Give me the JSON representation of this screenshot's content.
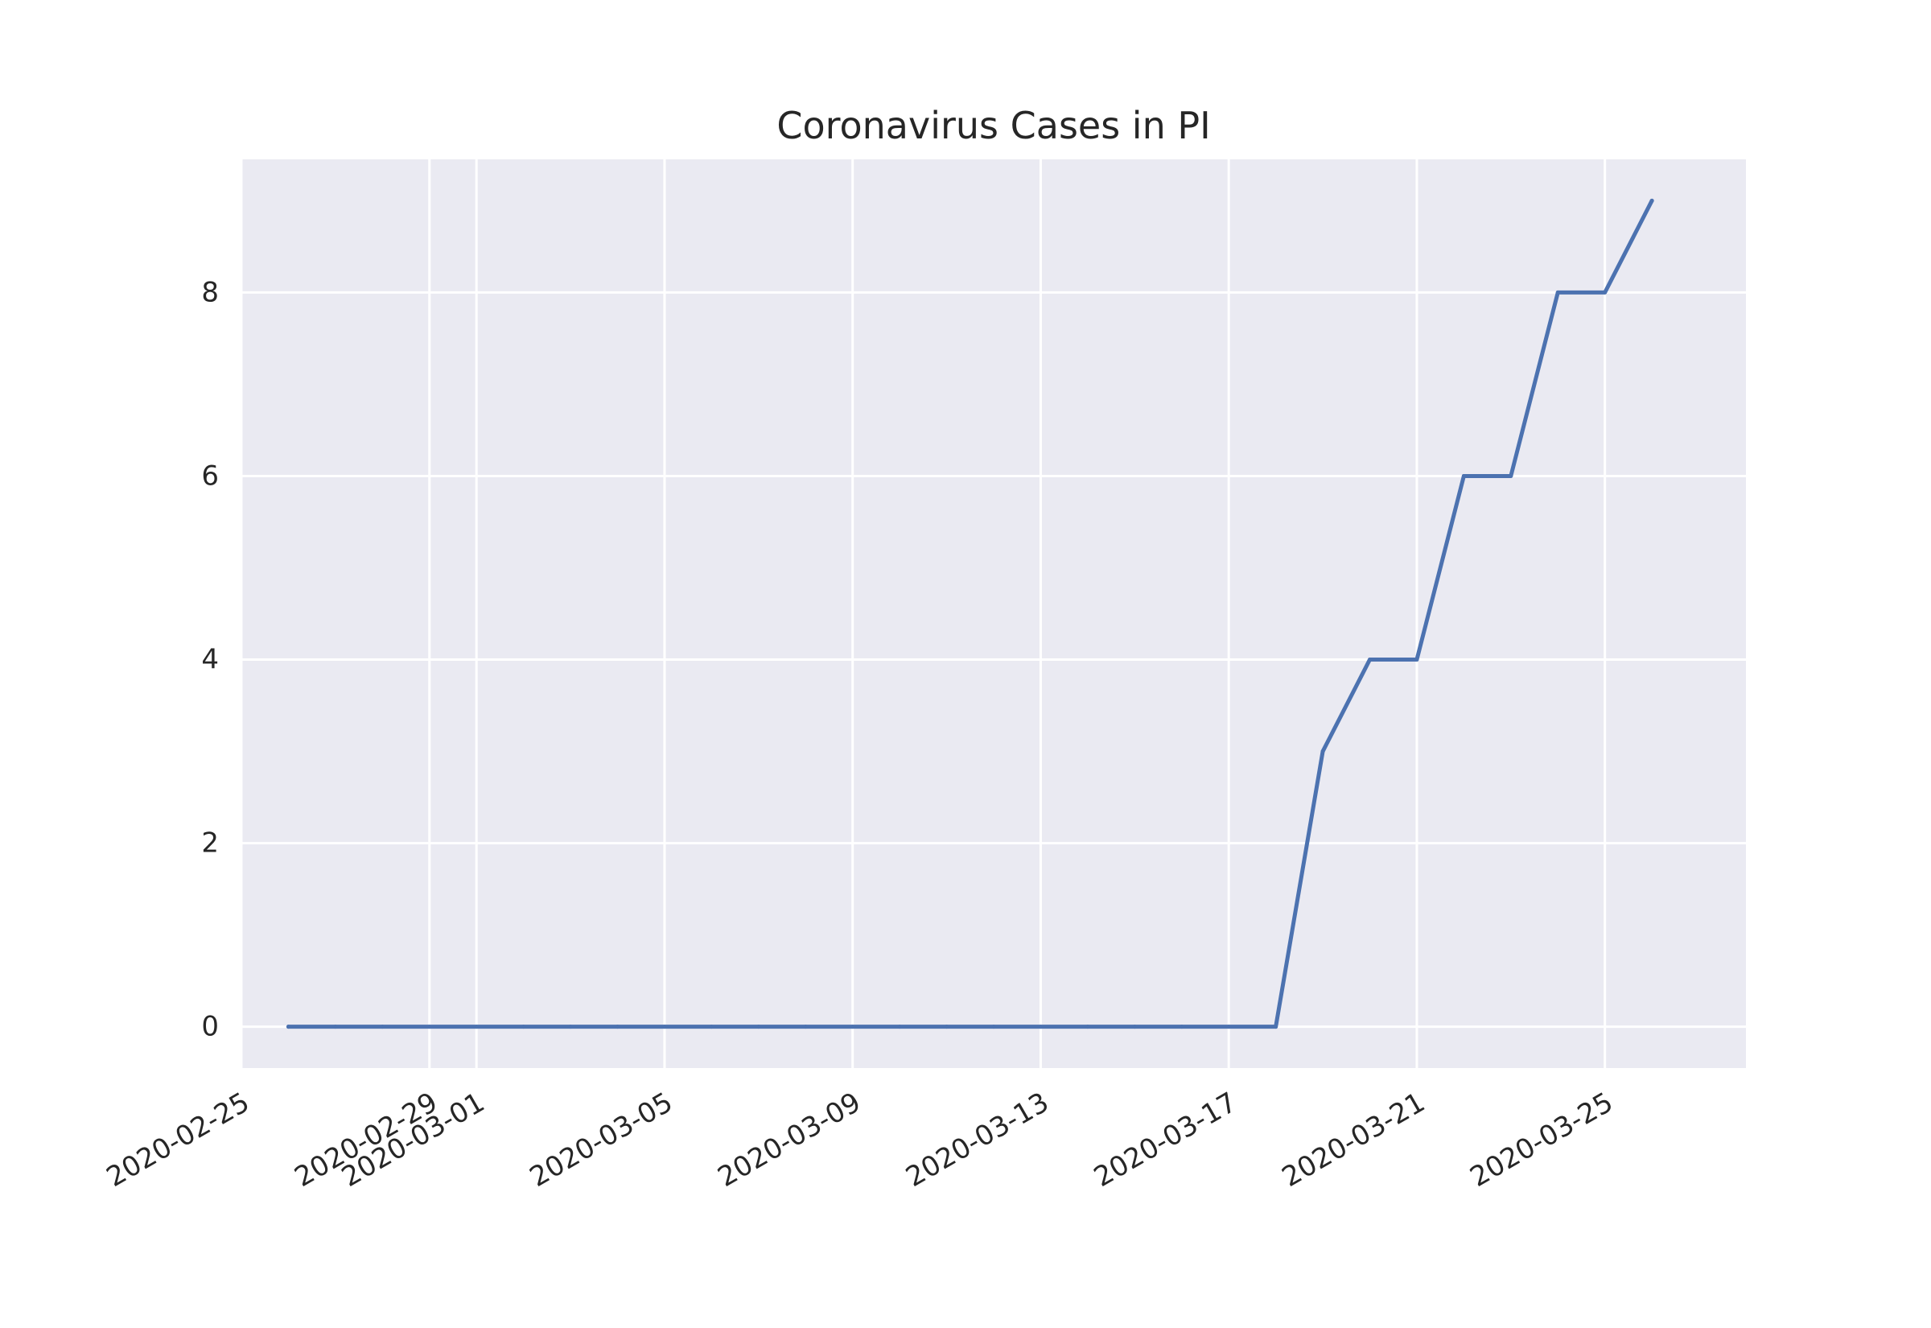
{
  "chart_data": {
    "type": "line",
    "title": "Coronavirus Cases in PI",
    "xlabel": "",
    "ylabel": "",
    "x_type": "date",
    "xlim": [
      "2020-02-25",
      "2020-03-28"
    ],
    "ylim": [
      -0.45,
      9.45
    ],
    "x_ticks": [
      "2020-02-25",
      "2020-02-29",
      "2020-03-01",
      "2020-03-05",
      "2020-03-09",
      "2020-03-13",
      "2020-03-17",
      "2020-03-21",
      "2020-03-25"
    ],
    "y_ticks": [
      0,
      2,
      4,
      6,
      8
    ],
    "grid": true,
    "legend": "none",
    "background_color": "#eaeaf2",
    "grid_color": "#ffffff",
    "line_color": "#4c72b0",
    "series": [
      {
        "x": [
          "2020-02-26",
          "2020-02-27",
          "2020-02-28",
          "2020-02-29",
          "2020-03-01",
          "2020-03-02",
          "2020-03-03",
          "2020-03-04",
          "2020-03-05",
          "2020-03-06",
          "2020-03-07",
          "2020-03-08",
          "2020-03-09",
          "2020-03-10",
          "2020-03-11",
          "2020-03-12",
          "2020-03-13",
          "2020-03-14",
          "2020-03-15",
          "2020-03-16",
          "2020-03-17",
          "2020-03-18",
          "2020-03-19",
          "2020-03-20",
          "2020-03-21",
          "2020-03-22",
          "2020-03-23",
          "2020-03-24",
          "2020-03-25",
          "2020-03-26"
        ],
        "values": [
          0,
          0,
          0,
          0,
          0,
          0,
          0,
          0,
          0,
          0,
          0,
          0,
          0,
          0,
          0,
          0,
          0,
          0,
          0,
          0,
          0,
          0,
          3,
          4,
          4,
          6,
          6,
          8,
          8,
          9
        ]
      }
    ]
  }
}
